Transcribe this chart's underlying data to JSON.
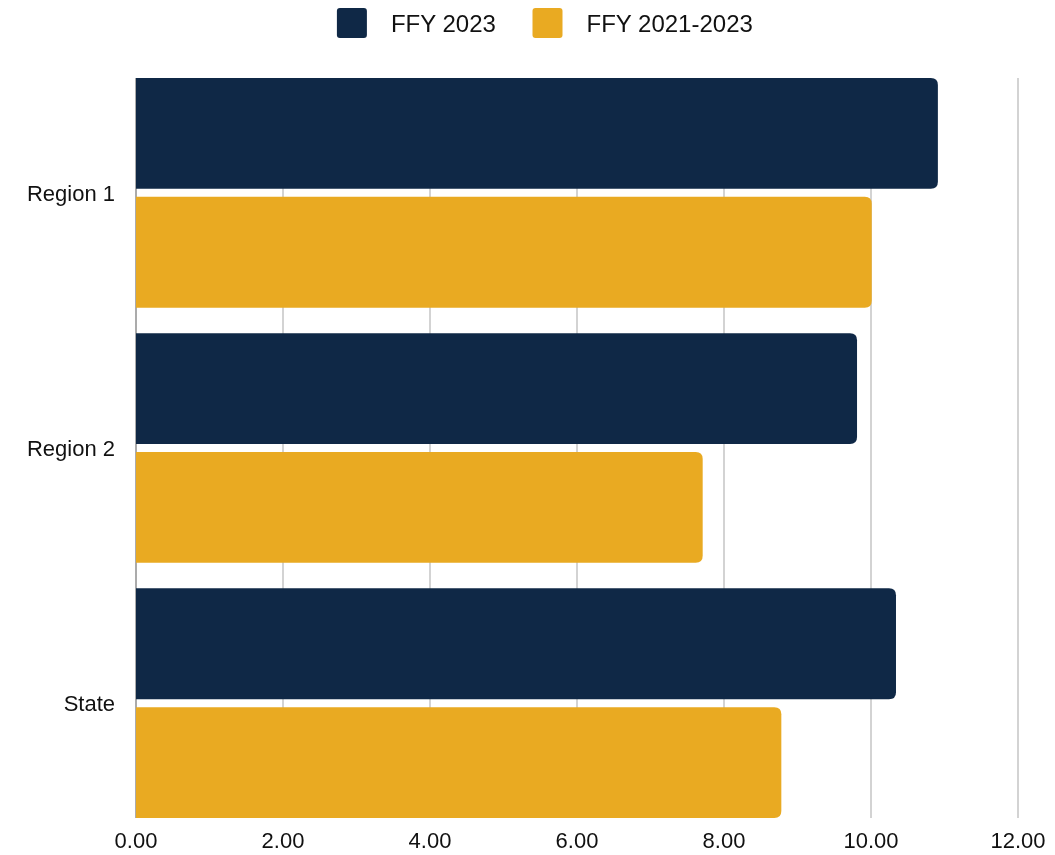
{
  "chart_data": {
    "type": "bar",
    "orientation": "horizontal",
    "categories": [
      "Region 1",
      "Region 2",
      "State"
    ],
    "series": [
      {
        "name": "FFY 2023",
        "color": "#0f2846",
        "values": [
          10.91,
          9.81,
          10.34
        ]
      },
      {
        "name": "FFY 2021-2023",
        "color": "#e9aa22",
        "values": [
          10.01,
          7.71,
          8.78
        ]
      }
    ],
    "xlim": [
      0,
      12
    ],
    "xticks": [
      {
        "value": 0,
        "label": "0.00"
      },
      {
        "value": 2,
        "label": "2.00"
      },
      {
        "value": 4,
        "label": "4.00"
      },
      {
        "value": 6,
        "label": "6.00"
      },
      {
        "value": 8,
        "label": "8.00"
      },
      {
        "value": 10,
        "label": "10.00"
      },
      {
        "value": 12,
        "label": "12.00"
      }
    ],
    "grid": "x",
    "legend": "top"
  }
}
